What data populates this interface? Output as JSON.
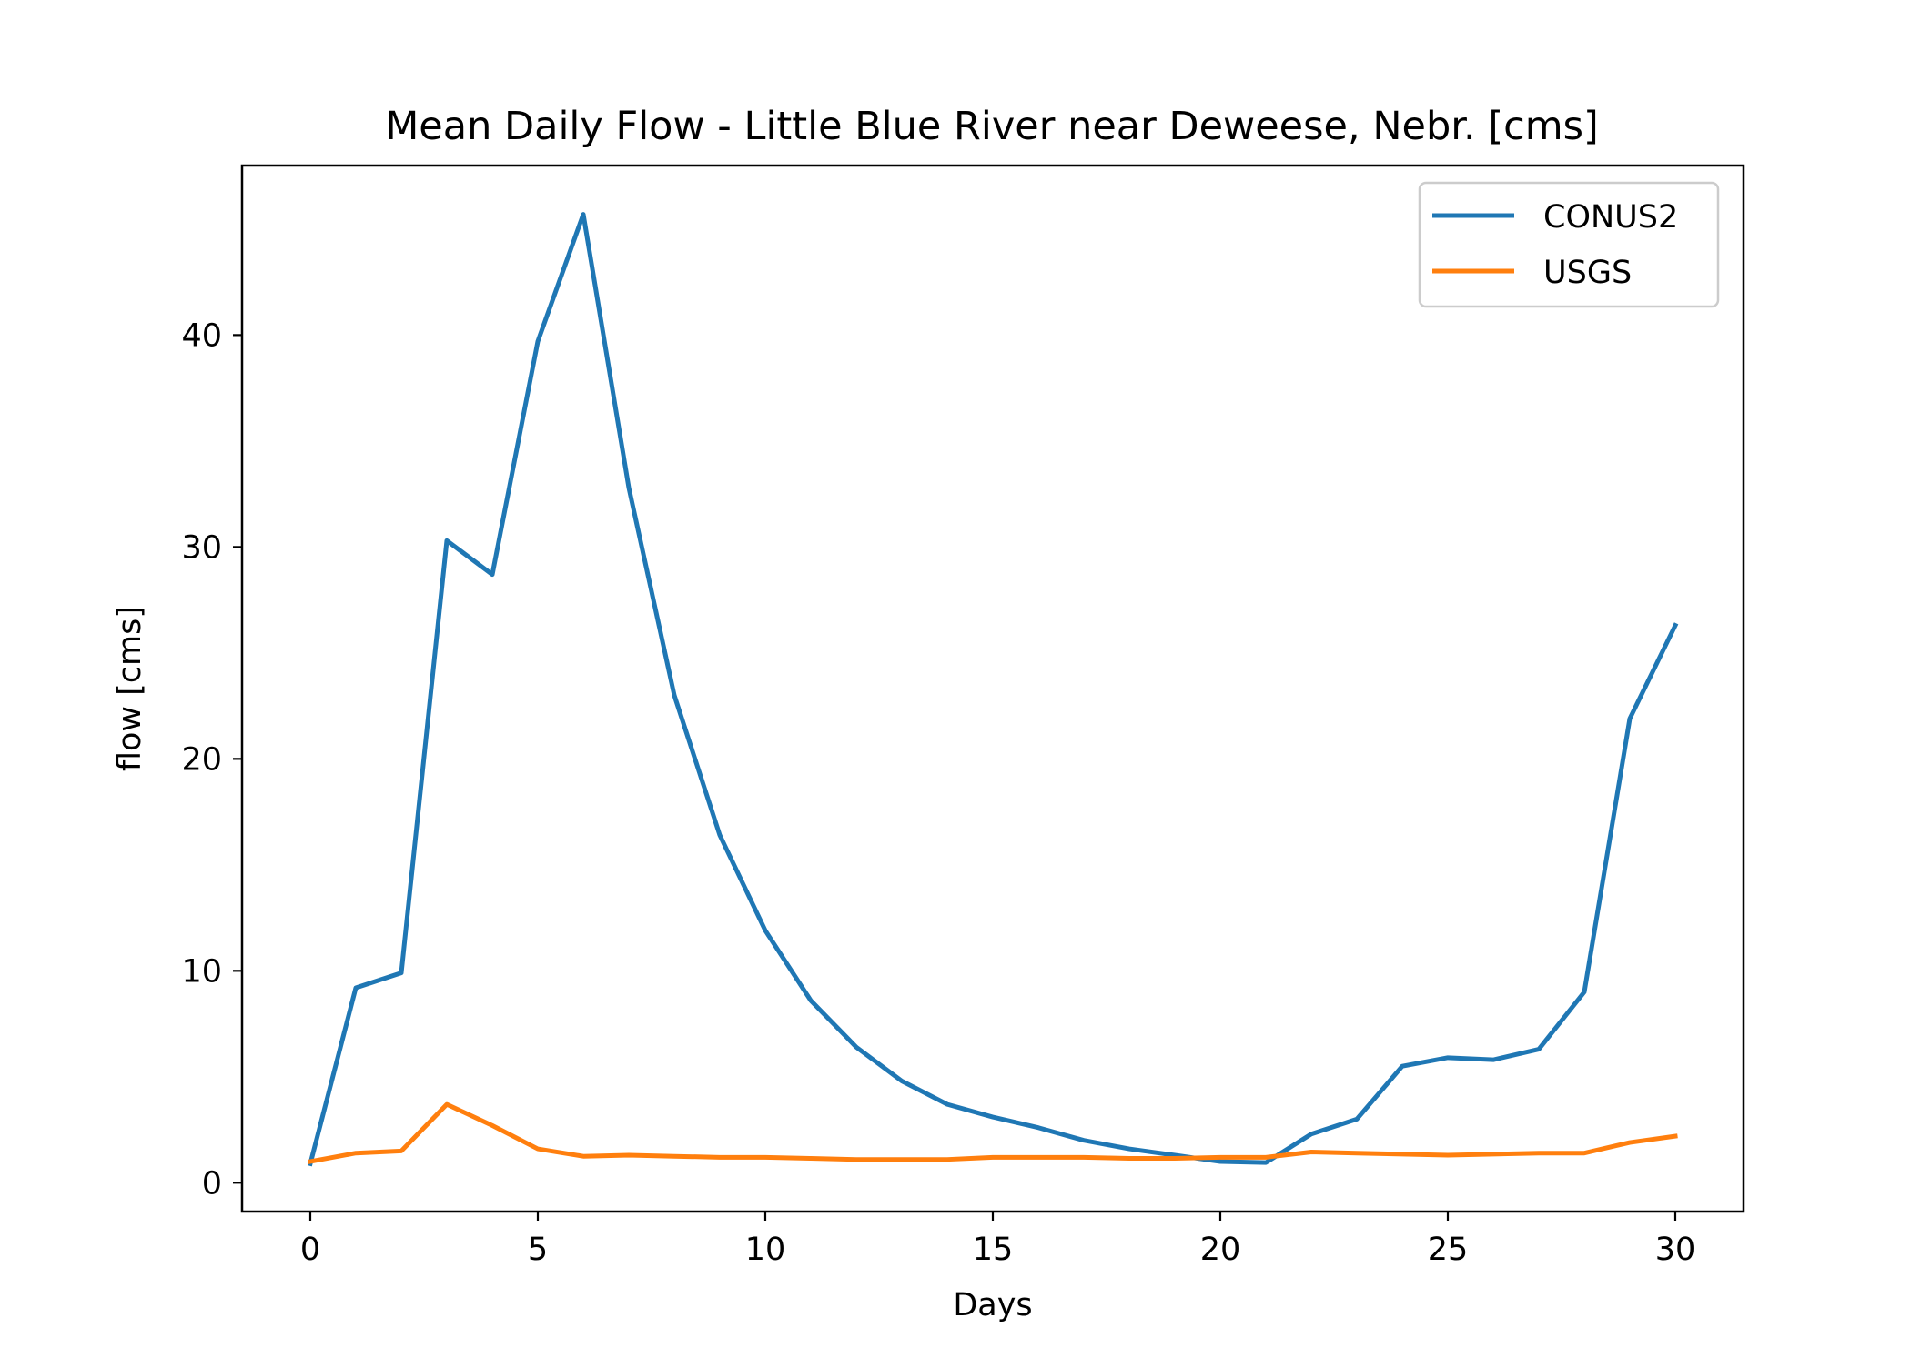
{
  "chart_data": {
    "type": "line",
    "title": "Mean Daily Flow - Little Blue River near Deweese, Nebr. [cms]",
    "xlabel": "Days",
    "ylabel": "flow [cms]",
    "xlim": [
      -1.5,
      31.5
    ],
    "ylim": [
      -1.36,
      48.0
    ],
    "xticks": [
      0,
      5,
      10,
      15,
      20,
      25,
      30
    ],
    "yticks": [
      0,
      10,
      20,
      30,
      40
    ],
    "grid": false,
    "legend_position": "top-right",
    "x": [
      0,
      1,
      2,
      3,
      4,
      5,
      6,
      7,
      8,
      9,
      10,
      11,
      12,
      13,
      14,
      15,
      16,
      17,
      18,
      19,
      20,
      21,
      22,
      23,
      24,
      25,
      26,
      27,
      28,
      29,
      30
    ],
    "series": [
      {
        "name": "CONUS2",
        "color": "#1f77b4",
        "values": [
          0.9,
          9.2,
          9.9,
          30.3,
          28.7,
          39.7,
          45.7,
          32.8,
          23.0,
          16.4,
          11.9,
          8.6,
          6.4,
          4.8,
          3.7,
          3.1,
          2.6,
          2.0,
          1.6,
          1.3,
          1.0,
          0.95,
          2.3,
          3.0,
          5.5,
          5.9,
          5.8,
          6.3,
          9.0,
          21.9,
          26.3
        ]
      },
      {
        "name": "USGS",
        "color": "#ff7f0e",
        "values": [
          1.0,
          1.4,
          1.5,
          3.7,
          2.7,
          1.6,
          1.25,
          1.3,
          1.25,
          1.2,
          1.2,
          1.15,
          1.1,
          1.1,
          1.1,
          1.2,
          1.2,
          1.2,
          1.15,
          1.15,
          1.2,
          1.2,
          1.45,
          1.4,
          1.35,
          1.3,
          1.35,
          1.4,
          1.4,
          1.9,
          2.2
        ]
      }
    ]
  }
}
